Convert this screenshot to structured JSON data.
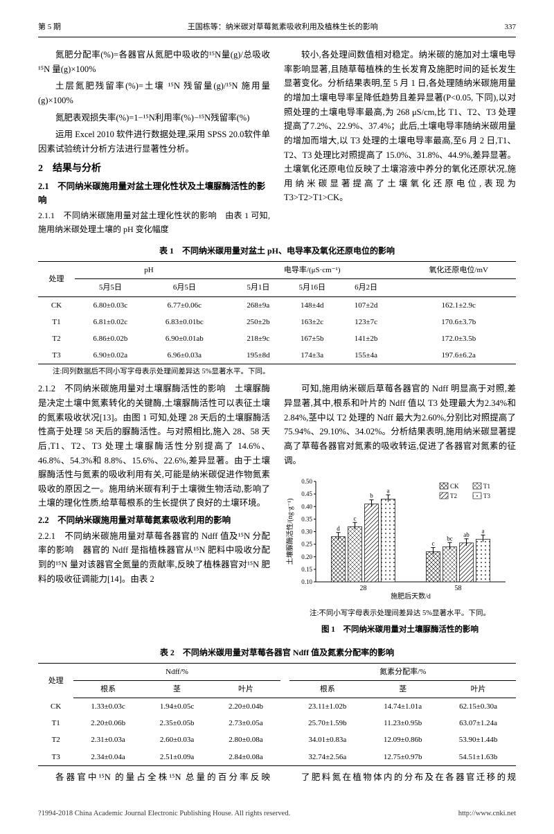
{
  "header": {
    "issue": "第 5 期",
    "title": "王国栋等：纳米碳对草莓氮素吸收利用及植株生长的影响",
    "page": "337"
  },
  "col1": {
    "formulas": [
      "氮肥分配率(%)=各器官从氮肥中吸收的¹⁵N量(g)/总吸收¹⁵N 量(g)×100%",
      "土层氮肥残留率(%)=土壤 ¹⁵N 残留量(g)/¹⁵N 施用量(g)×100%",
      "氮肥表观损失率(%)=1−¹⁵N利用率(%)−¹⁵N残留率(%)"
    ],
    "stats_para": "运用 Excel 2010 软件进行数据处理,采用 SPSS 20.0软件单因素试验统计分析方法进行显著性分析。",
    "sec2_title": "2　结果与分析",
    "sec21_title": "2.1　不同纳米碳施用量对盆土理化性状及土壤脲酶活性的影响",
    "sec211_title": "2.1.1　不同纳米碳施用量对盆土理化性状的影响",
    "sec211_body": "由表 1 可知,施用纳米碳处理土壤的 pH 变化幅度"
  },
  "col2": {
    "body": "较小,各处理间数值相对稳定。纳米碳的施加对土壤电导率影响显著,且随草莓植株的生长发育及施肥时间的延长发生显著变化。分析结果表明,至 5 月 1 日,各处理随纳米碳施用量的增加土壤电导率呈降低趋势且差异显著(P<0.05, 下同),以对照处理的土壤电导率最高,为 268 μS/cm,比 T1、T2、T3 处理提高了7.2%、22.9%、37.4%；此后,土壤电导率随纳米碳用量的增加而增大,以 T3 处理的土壤电导率最高,至6 月 2 日,T1、T2、T3 处理比对照提高了 15.0%、31.8%、44.9%,差异显著。土壤氧化还原电位反映了土壤溶液中养分的氧化还原状况,施用纳米碳显著提高了土壤氧化还原电位,表现为 T3>T2>T1>CK。"
  },
  "table1": {
    "caption": "表 1　不同纳米碳用量对盆土 pH、电导率及氧化还原电位的影响",
    "head1": [
      "处理",
      "pH",
      "电导率/(μS·cm⁻¹)",
      "氧化还原电位/mV"
    ],
    "head2": [
      "5月5日",
      "6月5日",
      "5月1日",
      "5月16日",
      "6月2日"
    ],
    "rows": [
      {
        "t": "CK",
        "ph1": "6.80±0.03c",
        "ph2": "6.77±0.06c",
        "ec1": "268±9a",
        "ec2": "148±4d",
        "ec3": "107±2d",
        "redox": "162.1±2.9c"
      },
      {
        "t": "T1",
        "ph1": "6.81±0.02c",
        "ph2": "6.83±0.01bc",
        "ec1": "250±2b",
        "ec2": "163±2c",
        "ec3": "123±7c",
        "redox": "170.6±3.7b"
      },
      {
        "t": "T2",
        "ph1": "6.86±0.02b",
        "ph2": "6.90±0.01ab",
        "ec1": "218±9c",
        "ec2": "167±5b",
        "ec3": "141±2b",
        "redox": "172.0±3.5b"
      },
      {
        "t": "T3",
        "ph1": "6.90±0.02a",
        "ph2": "6.96±0.03a",
        "ec1": "195±8d",
        "ec2": "174±3a",
        "ec3": "155±4a",
        "redox": "197.6±6.2a"
      }
    ],
    "note": "注:同列数据后不同小写字母表示处理间差异达 5%显著水平。下同。"
  },
  "mid_col1": {
    "sec212_title": "2.1.2　不同纳米碳施用量对土壤脲酶活性的影响",
    "sec212_body": "土壤脲酶是决定土壤中氮素转化的关键酶,土壤脲酶活性可以表征土壤的氮素吸收状况[13]。由图 1 可知,处理 28 天后的土壤脲酶活性高于处理 58 天后的脲酶活性。与对照相比,施入 28、58 天后,T1、T2、T3 处理土壤脲酶活性分别提高了 14.6%、46.8%、54.3%和 8.8%、15.6%、22.6%,差异显著。由于土壤脲酶活性与氮素的吸收利用有关,可能是纳米碳促进作物氮素吸收的原因之一。施用纳米碳有利于土壤微生物活动,影响了土壤的理化性质,给草莓根系的生长提供了良好的土壤环境。",
    "sec22_title": "2.2　不同纳米碳施用量对草莓氮素吸收利用的影响",
    "sec221_title": "2.2.1　不同纳米碳施用量对草莓各器官的 Ndff 值及¹⁵N 分配率的影响",
    "sec221_body": "器官的 Ndff 是指植株器官从¹⁵N 肥料中吸收分配到的¹⁵N 量对该器官全氮量的贡献率,反映了植株器官对¹⁵N 肥料的吸收征调能力[14]。由表 2"
  },
  "mid_col2": {
    "body": "可知,施用纳米碳后草莓各器官的 Ndff 明显高于对照,差异显著,其中,根系和叶片的 Ndff 值以 T3 处理最大为2.34%和 2.84%,茎中以 T2 处理的 Ndff 最大为2.60%,分别比对照提高了 75.94%、29.10%、34.02%。分析结果表明,施用纳米碳显著提高了草莓各器官对氮素的吸收转运,促进了各器官对氮素的征调。"
  },
  "chart": {
    "ylabel": "土壤脲酶活性/(ng·g⁻¹)",
    "xlabel": "施肥后天数/d",
    "y_ticks": [
      0.1,
      0.15,
      0.2,
      0.25,
      0.3,
      0.35,
      0.4,
      0.45,
      0.5
    ],
    "ylim": [
      0.1,
      0.5
    ],
    "categories": [
      "28",
      "58"
    ],
    "series": [
      {
        "name": "CK",
        "fill": "cross",
        "values": [
          0.28,
          0.22
        ],
        "letter": [
          "d",
          "c"
        ]
      },
      {
        "name": "T1",
        "fill": "dense",
        "values": [
          0.32,
          0.24
        ],
        "letter": [
          "c",
          "bc"
        ]
      },
      {
        "name": "T2",
        "fill": "diag",
        "values": [
          0.41,
          0.255
        ],
        "letter": [
          "b",
          "ab"
        ]
      },
      {
        "name": "T3",
        "fill": "dots",
        "values": [
          0.43,
          0.27
        ],
        "letter": [
          "a",
          "a"
        ]
      }
    ],
    "legend": [
      "CK",
      "T1",
      "T2",
      "T3"
    ],
    "note": "注:不同小写字母表示处理间差异达 5%显著水平。下同。",
    "caption": "图 1　不同纳米碳用量对土壤脲酶活性的影响"
  },
  "table2": {
    "caption": "表 2　不同纳米碳用量对草莓各器官 Ndff 值及氮素分配率的影响",
    "head1": [
      "处理",
      "Ndff/%",
      "氮素分配率/%"
    ],
    "head2": [
      "根系",
      "茎",
      "叶片",
      "根系",
      "茎",
      "叶片"
    ],
    "rows": [
      {
        "t": "CK",
        "n1": "1.33±0.03c",
        "n2": "1.94±0.05c",
        "n3": "2.20±0.04b",
        "f1": "23.11±1.02b",
        "f2": "14.74±1.01a",
        "f3": "62.15±0.30a"
      },
      {
        "t": "T1",
        "n1": "2.20±0.06b",
        "n2": "2.35±0.05b",
        "n3": "2.73±0.05a",
        "f1": "25.70±1.59b",
        "f2": "11.23±0.95b",
        "f3": "63.07±1.24a"
      },
      {
        "t": "T2",
        "n1": "2.31±0.03a",
        "n2": "2.60±0.03a",
        "n3": "2.80±0.08a",
        "f1": "34.01±0.83a",
        "f2": "12.09±0.86b",
        "f3": "53.90±1.44b"
      },
      {
        "t": "T3",
        "n1": "2.34±0.04a",
        "n2": "2.51±0.09a",
        "n3": "2.84±0.08a",
        "f1": "32.74±2.56a",
        "f2": "12.75±0.97b",
        "f3": "54.51±1.63b"
      }
    ]
  },
  "bottom": {
    "left": "各器官中¹⁵N 的量占全株¹⁵N 总量的百分率反映",
    "right": "了肥料氮在植物体内的分布及在各器官迁移的规"
  },
  "footer": {
    "left": "?1994-2018 China Academic Journal Electronic Publishing House. All rights reserved.",
    "right": "http://www.cnki.net"
  }
}
